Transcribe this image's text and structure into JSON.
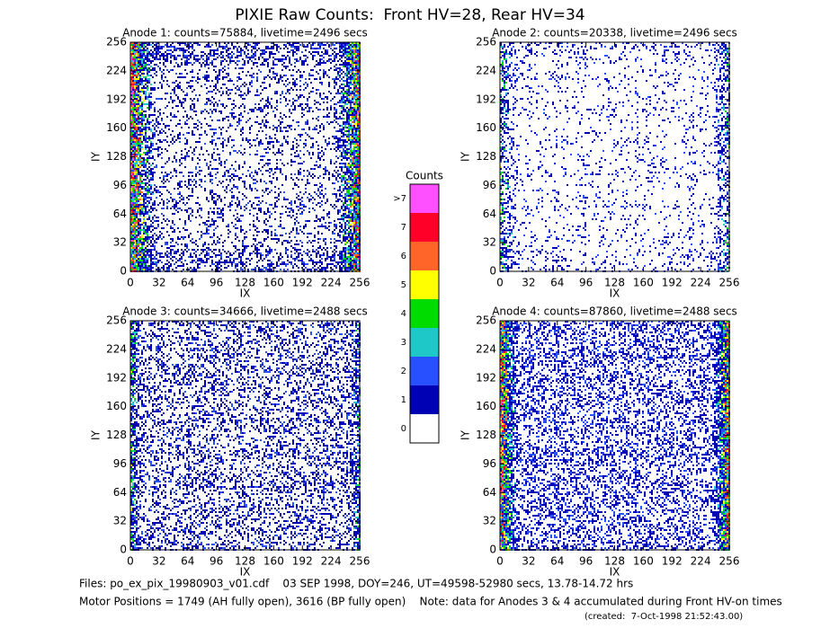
{
  "title": "PIXIE Raw Counts:  Front HV=28, Rear HV=34",
  "chart_data": [
    {
      "type": "heatmap",
      "title": "Anode 1: counts=75884, livetime=2496 secs",
      "xlabel": "IX",
      "ylabel": "IY",
      "xlim": [
        0,
        256
      ],
      "ylim": [
        0,
        256
      ],
      "xticks": [
        0,
        32,
        64,
        96,
        128,
        160,
        192,
        224,
        256
      ],
      "yticks": [
        0,
        32,
        64,
        96,
        128,
        160,
        192,
        224,
        256
      ]
    },
    {
      "type": "heatmap",
      "title": "Anode 2: counts=20338, livetime=2496 secs",
      "xlabel": "IX",
      "ylabel": "IY",
      "xlim": [
        0,
        256
      ],
      "ylim": [
        0,
        256
      ],
      "xticks": [
        0,
        32,
        64,
        96,
        128,
        160,
        192,
        224,
        256
      ],
      "yticks": [
        0,
        32,
        64,
        96,
        128,
        160,
        192,
        224,
        256
      ]
    },
    {
      "type": "heatmap",
      "title": "Anode 3: counts=34666, livetime=2488 secs",
      "xlabel": "IX",
      "ylabel": "IY",
      "xlim": [
        0,
        256
      ],
      "ylim": [
        0,
        256
      ],
      "xticks": [
        0,
        32,
        64,
        96,
        128,
        160,
        192,
        224,
        256
      ],
      "yticks": [
        0,
        32,
        64,
        96,
        128,
        160,
        192,
        224,
        256
      ]
    },
    {
      "type": "heatmap",
      "title": "Anode 4: counts=87860, livetime=2488 secs",
      "xlabel": "IX",
      "ylabel": "IY",
      "xlim": [
        0,
        256
      ],
      "ylim": [
        0,
        256
      ],
      "xticks": [
        0,
        32,
        64,
        96,
        128,
        160,
        192,
        224,
        256
      ],
      "yticks": [
        0,
        32,
        64,
        96,
        128,
        160,
        192,
        224,
        256
      ]
    }
  ],
  "colorbar": {
    "title": "Counts",
    "ticks": [
      0,
      1,
      2,
      3,
      4,
      5,
      6,
      7,
      {
        "value": 8,
        "label": ">7"
      }
    ],
    "colors": [
      "#ffffff",
      "#0000b4",
      "#2850ff",
      "#1ec8c8",
      "#00dc00",
      "#ffff00",
      "#ff6428",
      "#ff0028",
      "#ff50ff"
    ]
  },
  "footer": [
    "Files: po_ex_pix_19980903_v01.cdf    03 SEP 1998, DOY=246, UT=49598-52980 secs, 13.78-14.72 hrs",
    "Motor Positions = 1749 (AH fully open), 3616 (BP fully open)    Note: data for Anodes 3 & 4 accumulated during Front HV-on times",
    "(created:  7-Oct-1998 21:52:43.00)"
  ]
}
